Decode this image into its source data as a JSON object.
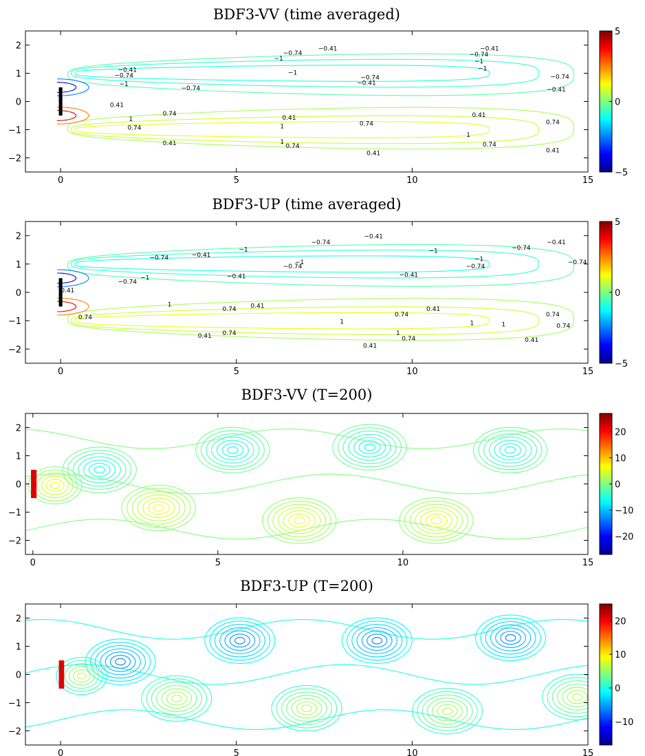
{
  "chart_data": [
    {
      "type": "contour",
      "title": "BDF3-VV (time averaged)",
      "xlim": [
        -1,
        15
      ],
      "ylim": [
        -2.5,
        2.5
      ],
      "xticks": [
        "0",
        "5",
        "10",
        "15"
      ],
      "xtick_values": [
        0,
        5,
        10,
        15
      ],
      "yticks": [
        "2",
        "1",
        "0",
        "-1",
        "-2"
      ],
      "ytick_values": [
        2,
        1,
        0,
        -1,
        -2
      ],
      "colorbar": {
        "range": [
          -5,
          5
        ],
        "ticks": [
          "5",
          "0",
          "-5"
        ],
        "tick_values": [
          5,
          0,
          -5
        ]
      },
      "contour_levels": [
        -1,
        -0.74,
        -0.41,
        0.41,
        0.74,
        1
      ],
      "contour_labels": [
        {
          "text": "-0.41",
          "x": 7.6,
          "y": 1.8
        },
        {
          "text": "-0.74",
          "x": 6.6,
          "y": 1.65
        },
        {
          "text": "-1",
          "x": 6.2,
          "y": 1.45
        },
        {
          "text": "-0.41",
          "x": 1.9,
          "y": 1.05
        },
        {
          "text": "-0.74",
          "x": 1.8,
          "y": 0.85
        },
        {
          "text": "-1",
          "x": 1.8,
          "y": 0.55
        },
        {
          "text": "-1",
          "x": 6.6,
          "y": 0.95
        },
        {
          "text": "-0.74",
          "x": 8.8,
          "y": 0.78
        },
        {
          "text": "-0.41",
          "x": 8.7,
          "y": 0.58
        },
        {
          "text": "-0.74",
          "x": 3.7,
          "y": 0.4
        },
        {
          "text": "-0.41",
          "x": 12.2,
          "y": 1.8
        },
        {
          "text": "-0.74",
          "x": 11.9,
          "y": 1.6
        },
        {
          "text": "-1",
          "x": 11.9,
          "y": 1.35
        },
        {
          "text": "-1",
          "x": 12.0,
          "y": 1.1
        },
        {
          "text": "-0.74",
          "x": 14.2,
          "y": 0.8
        },
        {
          "text": "-0.41",
          "x": 14.1,
          "y": 0.35
        },
        {
          "text": "0.41",
          "x": 1.6,
          "y": -0.2
        },
        {
          "text": "0.74",
          "x": 3.1,
          "y": -0.5
        },
        {
          "text": "1",
          "x": 2.0,
          "y": -0.7
        },
        {
          "text": "0.74",
          "x": 2.1,
          "y": -1.0
        },
        {
          "text": "0.41",
          "x": 3.1,
          "y": -1.55
        },
        {
          "text": "0.41",
          "x": 6.5,
          "y": -0.65
        },
        {
          "text": "1",
          "x": 6.3,
          "y": -0.95
        },
        {
          "text": "0.74",
          "x": 8.7,
          "y": -0.85
        },
        {
          "text": "1",
          "x": 6.3,
          "y": -1.5
        },
        {
          "text": "0.74",
          "x": 6.6,
          "y": -1.65
        },
        {
          "text": "0.41",
          "x": 8.9,
          "y": -1.9
        },
        {
          "text": "0.41",
          "x": 11.9,
          "y": -0.55
        },
        {
          "text": "1",
          "x": 11.6,
          "y": -1.25
        },
        {
          "text": "0.74",
          "x": 12.2,
          "y": -1.6
        },
        {
          "text": "0.74",
          "x": 14.0,
          "y": -0.8
        },
        {
          "text": "0.41",
          "x": 14.0,
          "y": -1.8
        }
      ]
    },
    {
      "type": "contour",
      "title": "BDF3-UP (time averaged)",
      "xlim": [
        -1,
        15
      ],
      "ylim": [
        -2.5,
        2.5
      ],
      "xticks": [
        "0",
        "5",
        "10",
        "15"
      ],
      "xtick_values": [
        0,
        5,
        10,
        15
      ],
      "yticks": [
        "2",
        "1",
        "0",
        "-1",
        "-2"
      ],
      "ytick_values": [
        2,
        1,
        0,
        -1,
        -2
      ],
      "colorbar": {
        "range": [
          -5,
          5
        ],
        "ticks": [
          "5",
          "0",
          "-5"
        ],
        "tick_values": [
          5,
          0,
          -5
        ]
      },
      "contour_levels": [
        -1,
        -0.74,
        -0.41,
        0.41,
        0.74,
        1
      ],
      "contour_labels": [
        {
          "text": "-0.41",
          "x": 4.0,
          "y": 1.25
        },
        {
          "text": "-0.74",
          "x": 2.8,
          "y": 1.15
        },
        {
          "text": "-1",
          "x": 5.2,
          "y": 1.45
        },
        {
          "text": "-0.74",
          "x": 7.4,
          "y": 1.7
        },
        {
          "text": "-0.41",
          "x": 8.9,
          "y": 1.9
        },
        {
          "text": "-1",
          "x": 6.8,
          "y": 1.0
        },
        {
          "text": "-0.74",
          "x": 6.6,
          "y": 0.85
        },
        {
          "text": "-0.41",
          "x": 5.0,
          "y": 0.5
        },
        {
          "text": "-0.74",
          "x": 1.9,
          "y": 0.3
        },
        {
          "text": "-1",
          "x": 2.4,
          "y": 0.45
        },
        {
          "text": "-0.41",
          "x": 9.9,
          "y": 0.55
        },
        {
          "text": "-1",
          "x": 10.6,
          "y": 1.4
        },
        {
          "text": "-1",
          "x": 11.9,
          "y": 1.1
        },
        {
          "text": "-0.74",
          "x": 11.8,
          "y": 0.85
        },
        {
          "text": "-0.41",
          "x": 14.1,
          "y": 1.7
        },
        {
          "text": "-0.74",
          "x": 13.1,
          "y": 1.5
        },
        {
          "text": "-0.74",
          "x": 14.7,
          "y": 1.0
        },
        {
          "text": "0.41",
          "x": 0.2,
          "y": 0.0
        },
        {
          "text": "1",
          "x": 3.1,
          "y": -0.5
        },
        {
          "text": "0.74",
          "x": 4.8,
          "y": -0.65
        },
        {
          "text": "0.41",
          "x": 5.6,
          "y": -0.55
        },
        {
          "text": "0.74",
          "x": 0.7,
          "y": -0.95
        },
        {
          "text": "1",
          "x": 8.0,
          "y": -1.1
        },
        {
          "text": "0.74",
          "x": 9.7,
          "y": -0.85
        },
        {
          "text": "0.41",
          "x": 10.6,
          "y": -0.65
        },
        {
          "text": "1",
          "x": 11.7,
          "y": -1.15
        },
        {
          "text": "1",
          "x": 12.6,
          "y": -1.2
        },
        {
          "text": "0.74",
          "x": 14.0,
          "y": -0.85
        },
        {
          "text": "0.74",
          "x": 14.3,
          "y": -1.25
        },
        {
          "text": "0.41",
          "x": 4.1,
          "y": -1.6
        },
        {
          "text": "0.74",
          "x": 4.8,
          "y": -1.5
        },
        {
          "text": "1",
          "x": 9.6,
          "y": -1.5
        },
        {
          "text": "0.74",
          "x": 9.9,
          "y": -1.7
        },
        {
          "text": "0.41",
          "x": 8.8,
          "y": -1.95
        },
        {
          "text": "0.41",
          "x": 13.4,
          "y": -1.75
        }
      ]
    },
    {
      "type": "contour",
      "title": "BDF3-VV (T=200)",
      "xlim": [
        -0.2,
        15
      ],
      "ylim": [
        -2.5,
        2.5
      ],
      "xticks": [
        "0",
        "5",
        "10",
        "15"
      ],
      "xtick_values": [
        0,
        5,
        10,
        15
      ],
      "yticks": [
        "2",
        "1",
        "0",
        "-1",
        "-2"
      ],
      "ytick_values": [
        2,
        1,
        0,
        -1,
        -2
      ],
      "colorbar": {
        "range": [
          -27,
          27
        ],
        "ticks": [
          "20",
          "10",
          "0",
          "-10",
          "-20"
        ],
        "tick_values": [
          20,
          10,
          0,
          -10,
          -20
        ]
      },
      "vortices": [
        {
          "x": 1.8,
          "y": 0.5,
          "sign": "neg"
        },
        {
          "x": 3.4,
          "y": -0.85,
          "sign": "pos"
        },
        {
          "x": 5.4,
          "y": 1.2,
          "sign": "neg"
        },
        {
          "x": 7.2,
          "y": -1.3,
          "sign": "pos"
        },
        {
          "x": 9.1,
          "y": 1.3,
          "sign": "neg"
        },
        {
          "x": 10.9,
          "y": -1.3,
          "sign": "pos"
        },
        {
          "x": 12.9,
          "y": 1.2,
          "sign": "neg"
        }
      ]
    },
    {
      "type": "contour",
      "title": "BDF3-UP (T=200)",
      "xlim": [
        -1,
        15
      ],
      "ylim": [
        -2.5,
        2.5
      ],
      "xticks": [
        "0",
        "5",
        "10",
        "15"
      ],
      "xtick_values": [
        0,
        5,
        10,
        15
      ],
      "yticks": [
        "2",
        "1",
        "0",
        "-1",
        "-2"
      ],
      "ytick_values": [
        2,
        1,
        0,
        -1,
        -2
      ],
      "colorbar": {
        "range": [
          -17,
          25
        ],
        "ticks": [
          "20",
          "10",
          "0",
          "-10"
        ],
        "tick_values": [
          20,
          10,
          0,
          -10
        ]
      },
      "vortices": [
        {
          "x": 1.7,
          "y": 0.45,
          "sign": "neg"
        },
        {
          "x": 3.3,
          "y": -0.85,
          "sign": "pos"
        },
        {
          "x": 5.1,
          "y": 1.2,
          "sign": "neg"
        },
        {
          "x": 7.0,
          "y": -1.2,
          "sign": "pos"
        },
        {
          "x": 9.0,
          "y": 1.2,
          "sign": "neg"
        },
        {
          "x": 11.0,
          "y": -1.3,
          "sign": "pos"
        },
        {
          "x": 12.8,
          "y": 1.3,
          "sign": "neg"
        },
        {
          "x": 14.7,
          "y": -0.8,
          "sign": "pos"
        }
      ]
    }
  ]
}
